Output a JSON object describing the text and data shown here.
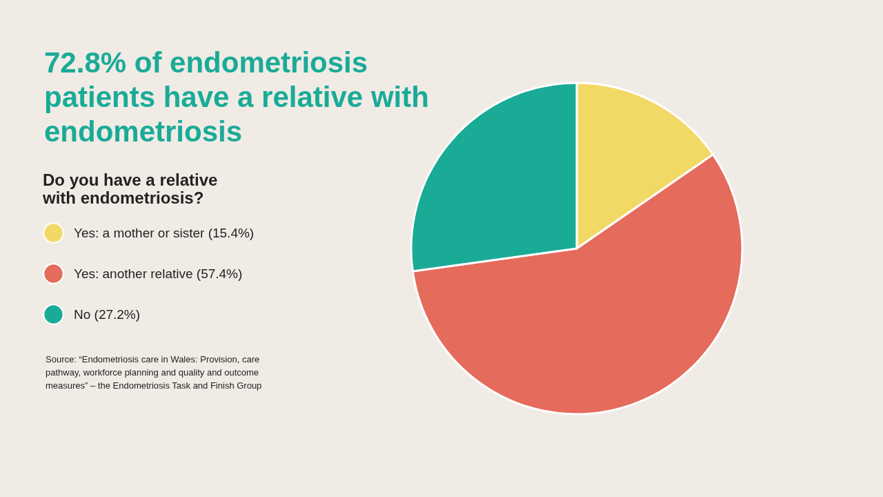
{
  "chart_data": {
    "type": "pie",
    "title": "72.8% of endometriosis patients have a relative with endometriosis",
    "legend_title": "Do you have a relative with endometriosis?",
    "categories": [
      "Yes: a mother or sister (15.4%)",
      "Yes: another relative (57.4%)",
      "No (27.2%)"
    ],
    "values": [
      15.4,
      57.4,
      27.2
    ],
    "colors": [
      "#f2d966",
      "#e56b5c",
      "#1aab97"
    ],
    "legend": "left",
    "annotations": [
      "Source: “Endometriosis care in Wales: Provision, care pathway, workforce planning and quality and outcome measures” – the Endometriosis Task and Finish Group"
    ]
  }
}
